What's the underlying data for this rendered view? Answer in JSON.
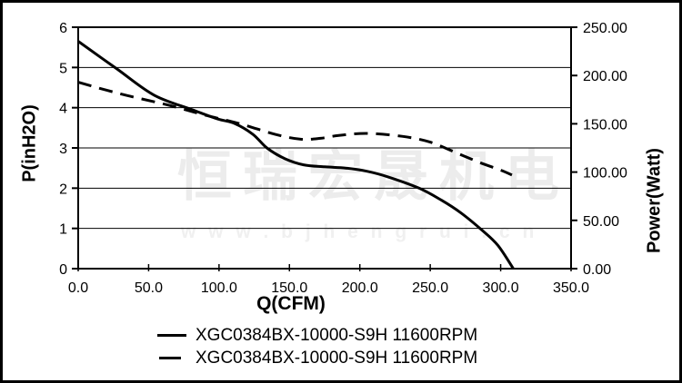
{
  "watermark": {
    "line1": "恒瑞宏晟机电",
    "line2": "w w w . b j h e n g r u i . c n"
  },
  "chart_data": {
    "type": "line",
    "title": "",
    "xlabel": "Q(CFM)",
    "ylabel_left": "P(inH2O)",
    "ylabel_right": "Power(Watt)",
    "x_range": [
      0,
      350
    ],
    "y_left_range": [
      0,
      6
    ],
    "y_right_range": [
      0,
      250
    ],
    "x_tick_labels": [
      "0.0",
      "50.0",
      "100.0",
      "150.0",
      "200.0",
      "250.0",
      "300.0",
      "350.0"
    ],
    "x_tick_values": [
      0,
      50,
      100,
      150,
      200,
      250,
      300,
      350
    ],
    "y_left_tick_labels": [
      "0",
      "1",
      "2",
      "3",
      "4",
      "5",
      "6"
    ],
    "y_left_tick_values": [
      0,
      1,
      2,
      3,
      4,
      5,
      6
    ],
    "y_right_tick_labels": [
      "0.00",
      "50.00",
      "100.00",
      "150.00",
      "200.00",
      "250.00"
    ],
    "y_right_tick_values": [
      0,
      50,
      100,
      150,
      200,
      250
    ],
    "grid": "horizontal-only",
    "gridline_values_left": [
      1,
      2,
      3,
      4,
      5
    ],
    "legend_position": "bottom",
    "line_color": "#000000",
    "series": [
      {
        "name": "XGC0384BX-10000-S9H 11600RPM",
        "axis": "left",
        "style": "solid",
        "unit": "inH2O vs CFM",
        "points": [
          [
            0,
            5.65
          ],
          [
            28,
            4.95
          ],
          [
            54,
            4.31
          ],
          [
            81,
            3.95
          ],
          [
            99,
            3.72
          ],
          [
            111,
            3.61
          ],
          [
            124,
            3.34
          ],
          [
            134,
            3.0
          ],
          [
            147,
            2.73
          ],
          [
            160,
            2.58
          ],
          [
            175,
            2.53
          ],
          [
            190,
            2.5
          ],
          [
            205,
            2.42
          ],
          [
            220,
            2.28
          ],
          [
            242,
            2.0
          ],
          [
            258,
            1.7
          ],
          [
            272,
            1.38
          ],
          [
            287,
            0.95
          ],
          [
            298,
            0.58
          ],
          [
            309,
            0.0
          ]
        ]
      },
      {
        "name": "XGC0384BX-10000-S9H 11600RPM",
        "axis": "right",
        "style": "dashed",
        "unit": "Watt vs CFM",
        "points": [
          [
            0,
            193
          ],
          [
            30,
            181
          ],
          [
            65,
            169
          ],
          [
            90,
            159
          ],
          [
            115,
            150
          ],
          [
            140,
            139
          ],
          [
            158,
            134
          ],
          [
            172,
            135
          ],
          [
            185,
            138
          ],
          [
            205,
            140
          ],
          [
            230,
            137
          ],
          [
            250,
            131
          ],
          [
            270,
            119
          ],
          [
            285,
            110
          ],
          [
            300,
            102
          ],
          [
            308,
            97
          ]
        ]
      }
    ]
  }
}
